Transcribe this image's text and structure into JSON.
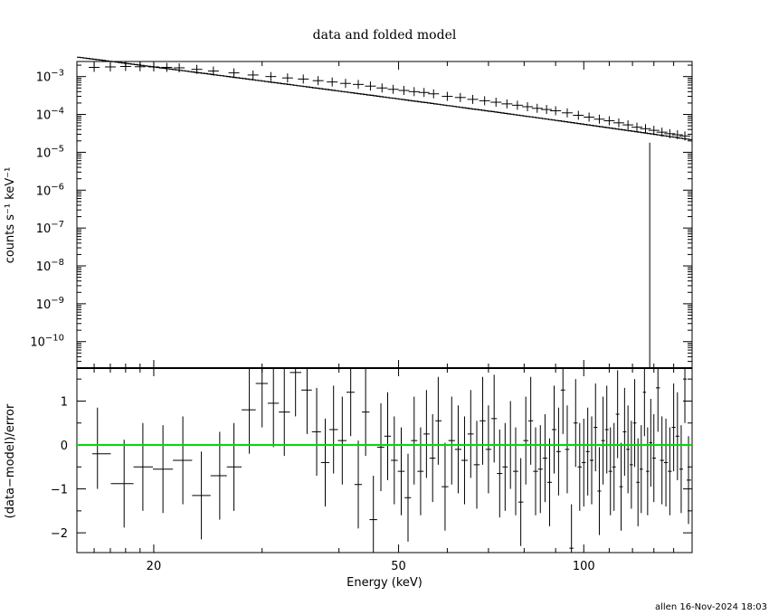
{
  "chart_data": [
    {
      "type": "scatter",
      "panel": "top",
      "title": "data and folded model",
      "xlabel": "",
      "ylabel": "counts s⁻¹ keV⁻¹",
      "x_scale": "log",
      "y_scale": "log",
      "xlim": [
        15,
        150
      ],
      "ylim": [
        2e-11,
        0.0025
      ],
      "y_ticks": [
        {
          "value": 0.001,
          "mantissa": "10",
          "exp": "−3"
        },
        {
          "value": 0.0001,
          "mantissa": "10",
          "exp": "−4"
        },
        {
          "value": 1e-05,
          "mantissa": "10",
          "exp": "−5"
        },
        {
          "value": 1e-06,
          "mantissa": "10",
          "exp": "−6"
        },
        {
          "value": 1e-07,
          "mantissa": "10",
          "exp": "−7"
        },
        {
          "value": 1e-08,
          "mantissa": "10",
          "exp": "−8"
        },
        {
          "value": 1e-09,
          "mantissa": "10",
          "exp": "−9"
        },
        {
          "value": 1e-10,
          "mantissa": "10",
          "exp": "−10"
        }
      ],
      "model": {
        "norm_at_20keV": 0.0018,
        "index": 2.05,
        "rolloff_keV": 150
      },
      "data_points": [
        [
          16.0,
          0.00175
        ],
        [
          17.0,
          0.0018
        ],
        [
          18.0,
          0.00185
        ],
        [
          19.0,
          0.00182
        ],
        [
          20.0,
          0.0018
        ],
        [
          21.0,
          0.00175
        ],
        [
          22.0,
          0.0017
        ],
        [
          23.5,
          0.00155
        ],
        [
          25.0,
          0.0014
        ],
        [
          27.0,
          0.00125
        ],
        [
          29.0,
          0.0011
        ],
        [
          31.0,
          0.001
        ],
        [
          33.0,
          0.00092
        ],
        [
          35.0,
          0.00086
        ],
        [
          37.0,
          0.00078
        ],
        [
          39.0,
          0.00072
        ],
        [
          41.0,
          0.00066
        ],
        [
          43.0,
          0.00062
        ],
        [
          45.0,
          0.00056
        ],
        [
          47.0,
          0.0005
        ],
        [
          49.0,
          0.00046
        ],
        [
          51.0,
          0.00043
        ],
        [
          53.0,
          0.0004
        ],
        [
          55.0,
          0.00038
        ],
        [
          57.0,
          0.00035
        ],
        [
          60.0,
          0.0003
        ],
        [
          63.0,
          0.00028
        ],
        [
          66.0,
          0.00025
        ],
        [
          69.0,
          0.00023
        ],
        [
          72.0,
          0.00021
        ],
        [
          75.0,
          0.00019
        ],
        [
          78.0,
          0.000175
        ],
        [
          81.0,
          0.00016
        ],
        [
          84.0,
          0.000145
        ],
        [
          87.0,
          0.000135
        ],
        [
          90.0,
          0.000125
        ],
        [
          94.0,
          0.00011
        ],
        [
          98.0,
          9.5e-05
        ],
        [
          102.0,
          8.5e-05
        ],
        [
          106.0,
          7.5e-05
        ],
        [
          110.0,
          6.8e-05
        ],
        [
          114.0,
          6e-05
        ],
        [
          118.0,
          5.3e-05
        ],
        [
          122.0,
          4.6e-05
        ],
        [
          126.0,
          4.2e-05
        ],
        [
          130.0,
          3.8e-05
        ],
        [
          134.0,
          3.4e-05
        ],
        [
          138.0,
          3.1e-05
        ],
        [
          142.0,
          2.9e-05
        ],
        [
          146.0,
          2.7e-05
        ]
      ],
      "upper_limit_line": {
        "x": 128,
        "y_top": 1.8e-05
      }
    },
    {
      "type": "scatter",
      "panel": "bottom",
      "title": "",
      "xlabel": "Energy (keV)",
      "ylabel": "(data−model)/error",
      "x_scale": "log",
      "xlim": [
        15,
        150
      ],
      "ylim": [
        -2.45,
        1.75
      ],
      "x_ticks": [
        {
          "value": 20,
          "label": "20"
        },
        {
          "value": 50,
          "label": "50"
        },
        {
          "value": 100,
          "label": "100"
        }
      ],
      "y_ticks": [
        {
          "value": 1,
          "label": "1"
        },
        {
          "value": 0,
          "label": "0"
        },
        {
          "value": -1,
          "label": "−1"
        },
        {
          "value": -2,
          "label": "−2"
        }
      ],
      "zero_line_color": "#00dd00",
      "residuals": [
        [
          16.2,
          -0.2,
          0.8,
          1.05
        ],
        [
          17.9,
          -0.88,
          1.0,
          1.0
        ],
        [
          19.2,
          -0.5,
          1.0,
          1.0
        ],
        [
          20.7,
          -0.55,
          1.0,
          1.0
        ],
        [
          22.3,
          -0.35,
          1.0,
          1.0
        ],
        [
          23.9,
          -1.15,
          1.0,
          1.0
        ],
        [
          25.6,
          -0.7,
          1.0,
          1.0
        ],
        [
          27.0,
          -0.5,
          1.0,
          1.0
        ],
        [
          28.6,
          0.8,
          1.0,
          1.0
        ],
        [
          30.0,
          1.4,
          1.0,
          1.0
        ],
        [
          31.3,
          0.95,
          1.0,
          1.0
        ],
        [
          32.6,
          0.75,
          1.0,
          1.0
        ],
        [
          34.0,
          1.65,
          1.0,
          1.0
        ],
        [
          35.5,
          1.25,
          1.0,
          1.0
        ],
        [
          36.8,
          0.3,
          1.0,
          1.0
        ],
        [
          38.0,
          -0.4,
          1.0,
          1.0
        ],
        [
          39.2,
          0.35,
          1.0,
          1.0
        ],
        [
          40.5,
          0.1,
          1.0,
          1.0
        ],
        [
          41.8,
          1.2,
          1.0,
          1.0
        ],
        [
          43.0,
          -0.9,
          1.0,
          1.0
        ],
        [
          44.2,
          0.75,
          1.0,
          1.0
        ],
        [
          45.5,
          -1.7,
          1.0,
          1.0
        ],
        [
          46.8,
          -0.05,
          1.0,
          1.0
        ],
        [
          48.0,
          0.2,
          1.0,
          1.0
        ],
        [
          49.2,
          -0.35,
          1.0,
          1.0
        ],
        [
          50.5,
          -0.6,
          1.0,
          1.0
        ],
        [
          51.8,
          -1.2,
          1.0,
          1.0
        ],
        [
          53.0,
          0.1,
          1.0,
          1.0
        ],
        [
          54.3,
          -0.6,
          1.0,
          1.0
        ],
        [
          55.5,
          0.25,
          1.0,
          1.0
        ],
        [
          56.8,
          -0.3,
          1.0,
          1.0
        ],
        [
          58.0,
          0.55,
          1.0,
          1.0
        ],
        [
          59.5,
          -0.95,
          1.0,
          1.0
        ],
        [
          61.0,
          0.1,
          1.0,
          1.0
        ],
        [
          62.5,
          -0.1,
          1.0,
          1.0
        ],
        [
          64.0,
          -0.35,
          1.0,
          1.0
        ],
        [
          65.5,
          0.25,
          1.0,
          1.0
        ],
        [
          67.0,
          -0.45,
          1.0,
          1.0
        ],
        [
          68.5,
          0.55,
          1.0,
          1.0
        ],
        [
          70.0,
          -0.1,
          1.0,
          1.0
        ],
        [
          71.5,
          0.6,
          1.0,
          1.0
        ],
        [
          73.0,
          -0.65,
          1.0,
          1.0
        ],
        [
          74.5,
          -0.5,
          1.0,
          1.0
        ],
        [
          76.0,
          0.0,
          1.0,
          1.0
        ],
        [
          77.5,
          -0.6,
          1.0,
          1.0
        ],
        [
          79.0,
          -1.3,
          1.0,
          1.0
        ],
        [
          80.5,
          0.1,
          1.0,
          1.0
        ],
        [
          82.0,
          0.55,
          1.0,
          1.0
        ],
        [
          83.5,
          -0.6,
          1.0,
          1.0
        ],
        [
          85.0,
          -0.55,
          1.0,
          1.0
        ],
        [
          86.5,
          -0.3,
          1.0,
          1.0
        ],
        [
          88.0,
          -0.85,
          1.0,
          1.0
        ],
        [
          89.5,
          0.35,
          1.0,
          1.0
        ],
        [
          91.0,
          -0.15,
          1.0,
          1.0
        ],
        [
          92.5,
          1.25,
          1.0,
          1.0
        ],
        [
          94.0,
          -0.1,
          1.0,
          1.0
        ],
        [
          95.5,
          -2.35,
          1.0,
          1.0
        ],
        [
          97.0,
          0.5,
          1.0,
          1.0
        ],
        [
          98.5,
          -0.5,
          1.0,
          1.0
        ],
        [
          100.0,
          -0.4,
          1.0,
          1.0
        ],
        [
          101.5,
          -0.15,
          1.0,
          1.0
        ],
        [
          103.0,
          -0.35,
          1.0,
          1.0
        ],
        [
          104.5,
          0.4,
          1.0,
          1.0
        ],
        [
          106.0,
          -1.05,
          1.0,
          1.0
        ],
        [
          107.5,
          0.1,
          1.0,
          1.0
        ],
        [
          109.0,
          0.35,
          1.0,
          1.0
        ],
        [
          110.5,
          -0.6,
          1.0,
          1.0
        ],
        [
          112.0,
          -0.5,
          1.0,
          1.0
        ],
        [
          113.5,
          0.7,
          1.0,
          1.0
        ],
        [
          115.0,
          -0.95,
          1.0,
          1.0
        ],
        [
          116.5,
          0.3,
          1.0,
          1.0
        ],
        [
          118.0,
          -0.1,
          1.0,
          1.0
        ],
        [
          119.5,
          -0.45,
          1.0,
          1.0
        ],
        [
          121.0,
          0.5,
          1.0,
          1.0
        ],
        [
          122.5,
          -0.85,
          1.0,
          1.0
        ],
        [
          124.0,
          -0.55,
          1.0,
          1.0
        ],
        [
          125.5,
          1.2,
          1.0,
          1.0
        ],
        [
          127.0,
          -0.6,
          1.0,
          1.0
        ],
        [
          128.5,
          0.05,
          1.0,
          1.0
        ],
        [
          130.0,
          -0.3,
          1.0,
          1.0
        ],
        [
          132.0,
          1.3,
          1.0,
          1.0
        ],
        [
          134.0,
          -0.35,
          1.0,
          1.0
        ],
        [
          136.0,
          -0.4,
          1.0,
          1.0
        ],
        [
          138.0,
          -0.6,
          1.0,
          1.0
        ],
        [
          140.0,
          0.4,
          1.0,
          1.0
        ],
        [
          142.0,
          0.2,
          1.0,
          1.0
        ],
        [
          144.0,
          -0.55,
          1.0,
          1.0
        ],
        [
          146.0,
          1.5,
          1.0,
          1.0
        ],
        [
          148.0,
          -0.8,
          1.0,
          1.0
        ]
      ]
    }
  ],
  "footer": {
    "stamp": "allen 16-Nov-2024 18:03"
  }
}
